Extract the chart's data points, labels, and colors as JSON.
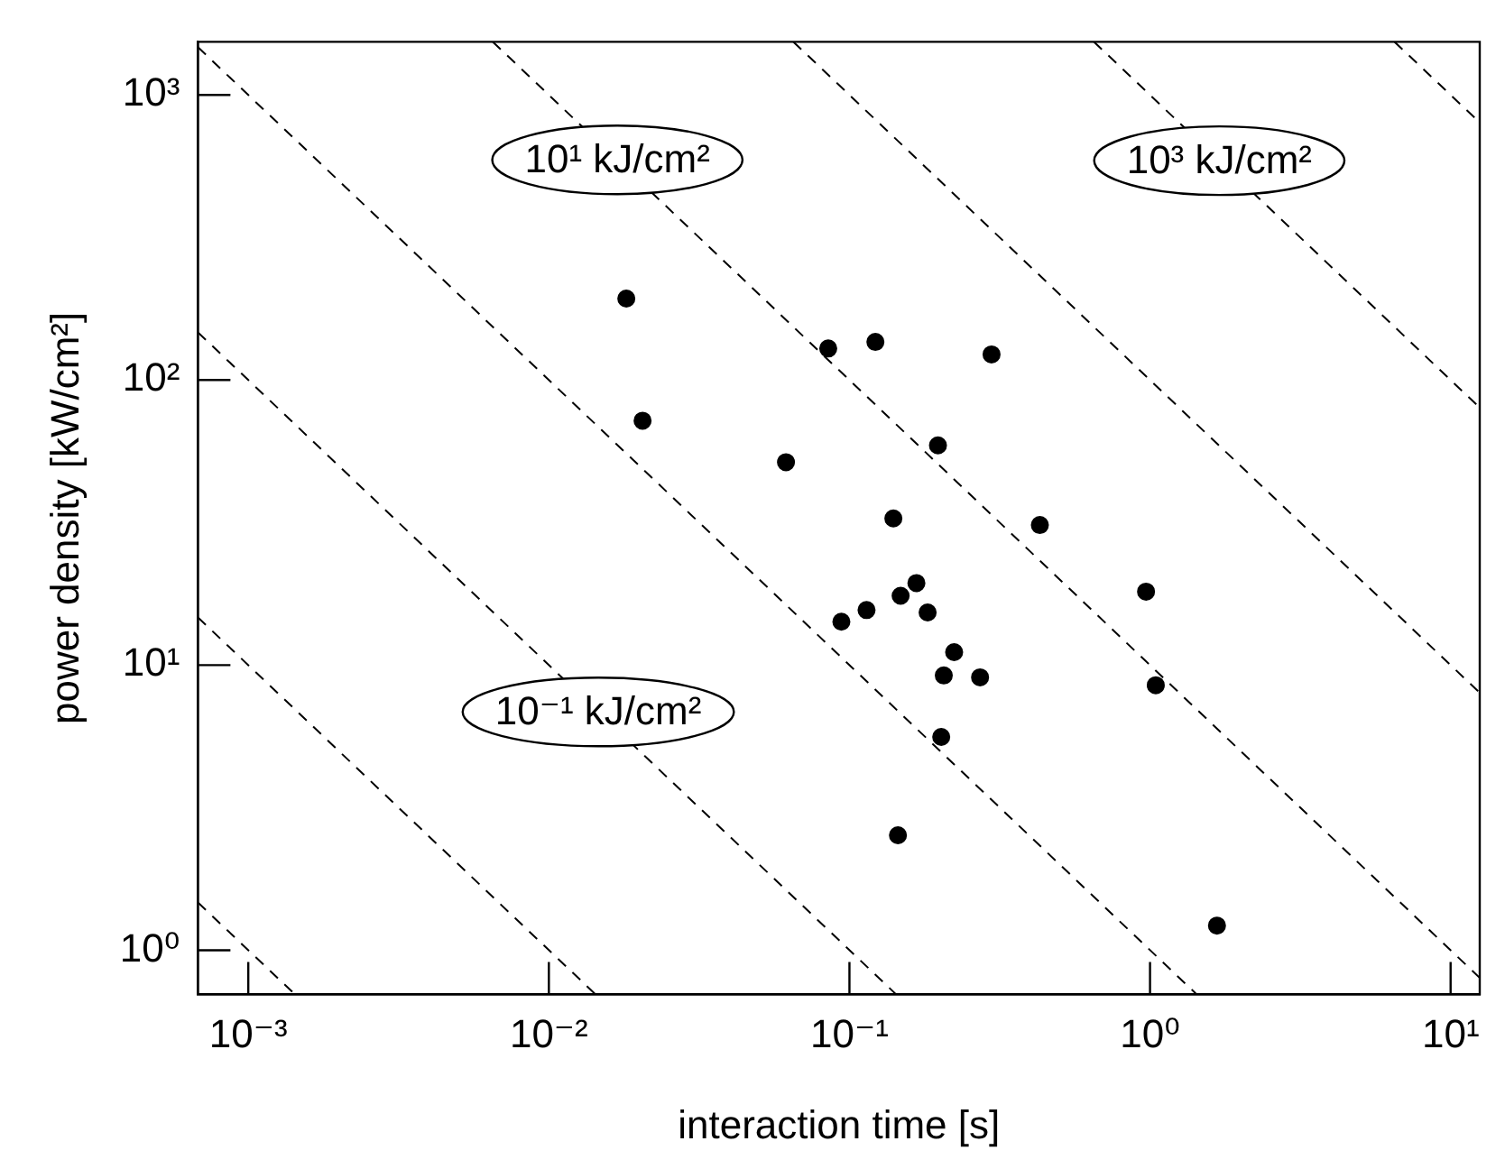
{
  "chart_data": {
    "type": "scatter",
    "xlabel": "interaction time [s]",
    "ylabel": "power density [kW/cm²]",
    "log": "xy",
    "grid": false,
    "legend": false,
    "xlim": [
      0.00068,
      12.5
    ],
    "ylim": [
      0.7,
      1535
    ],
    "xticks": [
      {
        "value": 0.001,
        "label": "10⁻³"
      },
      {
        "value": 0.01,
        "label": "10⁻²"
      },
      {
        "value": 0.1,
        "label": "10⁻¹"
      },
      {
        "value": 1,
        "label": "10⁰"
      },
      {
        "value": 10,
        "label": "10¹"
      }
    ],
    "yticks": [
      {
        "value": 1,
        "label": "10⁰"
      },
      {
        "value": 10,
        "label": "10¹"
      },
      {
        "value": 100,
        "label": "10²"
      },
      {
        "value": 1000,
        "label": "10³"
      }
    ],
    "series": [
      {
        "type": "line",
        "color": "#000000",
        "line_style": "dashed",
        "marker": "none",
        "x": [
          0.00068,
          0.00143
        ],
        "values": [
          1.47,
          0.7
        ]
      },
      {
        "type": "line",
        "color": "#000000",
        "line_style": "dashed",
        "marker": "none",
        "x": [
          0.00068,
          0.0143
        ],
        "values": [
          14.7,
          0.7
        ]
      },
      {
        "type": "line",
        "color": "#000000",
        "line_style": "dashed",
        "marker": "none",
        "x": [
          0.00068,
          0.143
        ],
        "values": [
          147,
          0.7
        ]
      },
      {
        "type": "line",
        "color": "#000000",
        "line_style": "dashed",
        "marker": "none",
        "x": [
          0.00068,
          1.43
        ],
        "values": [
          1470,
          0.7
        ]
      },
      {
        "type": "line",
        "color": "#000000",
        "line_style": "dashed",
        "marker": "none",
        "x": [
          0.00651,
          12.5
        ],
        "values": [
          1535,
          0.8
        ]
      },
      {
        "type": "line",
        "color": "#000000",
        "line_style": "dashed",
        "marker": "none",
        "x": [
          0.0651,
          12.5
        ],
        "values": [
          1535,
          8
        ]
      },
      {
        "type": "line",
        "color": "#000000",
        "line_style": "dashed",
        "marker": "none",
        "x": [
          0.651,
          12.5
        ],
        "values": [
          1535,
          80
        ]
      },
      {
        "type": "line",
        "color": "#000000",
        "line_style": "dashed",
        "marker": "none",
        "x": [
          6.51,
          12.5
        ],
        "values": [
          1535,
          800
        ]
      },
      {
        "type": "scatter",
        "color": "#000000",
        "marker": "circle",
        "x": [
          0.085,
          0.122,
          0.297,
          0.197,
          0.0615,
          0.14,
          0.43,
          0.97,
          0.167,
          0.148,
          0.114,
          0.094,
          0.182,
          0.223,
          0.206,
          0.272,
          1.045,
          0.202,
          0.145,
          1.67,
          0.0181,
          0.0205
        ],
        "values": [
          129,
          136,
          123,
          59,
          51.5,
          32.7,
          31,
          18.1,
          19.4,
          17.5,
          15.6,
          14.2,
          15.3,
          11.1,
          9.2,
          9.06,
          8.5,
          5.6,
          2.53,
          1.22,
          193,
          72
        ]
      }
    ],
    "annotations": [
      {
        "text": "10¹ kJ/cm²",
        "x": 0.0169,
        "y": 592
      },
      {
        "text": "10³ kJ/cm²",
        "x": 1.7,
        "y": 588
      },
      {
        "text": "10⁻¹ kJ/cm²",
        "x": 0.0146,
        "y": 6.85
      }
    ]
  }
}
